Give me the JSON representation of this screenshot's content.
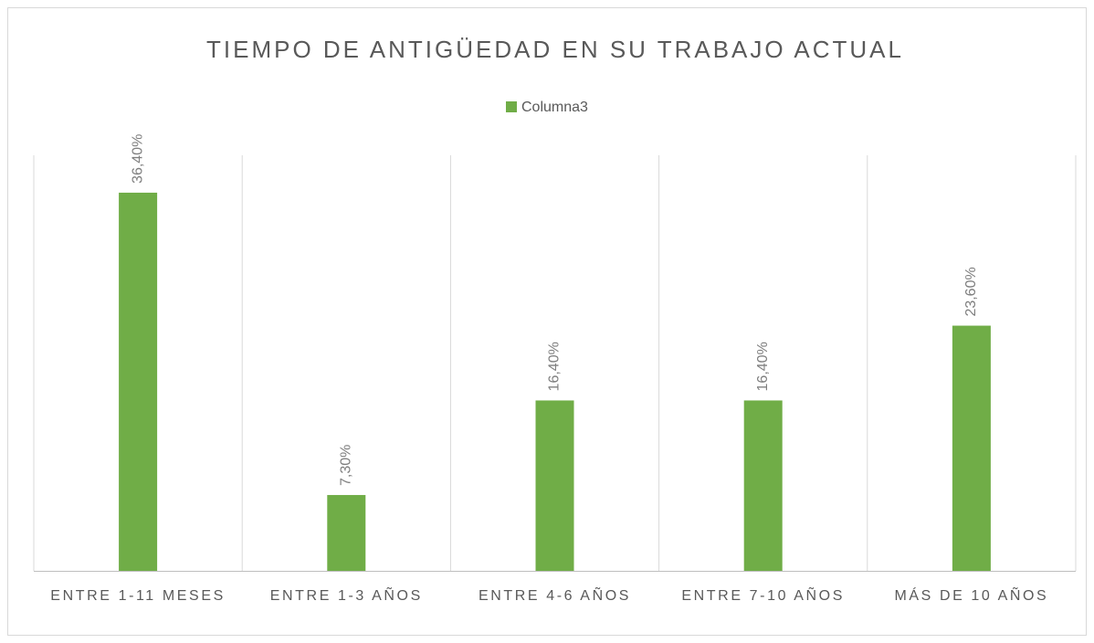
{
  "chart_data": {
    "type": "bar",
    "title": "TIEMPO DE ANTIGÜEDAD EN SU TRABAJO ACTUAL",
    "categories": [
      "ENTRE  1-11 MESES",
      "ENTRE 1-3 AÑOS",
      "ENTRE 4-6 AÑOS",
      "ENTRE 7-10 AÑOS",
      "MÁS DE 10 AÑOS"
    ],
    "series": [
      {
        "name": "Columna3",
        "color": "#70ad47",
        "values": [
          36.4,
          7.3,
          16.4,
          16.4,
          23.6
        ],
        "value_labels": [
          "36,40%",
          "7,30%",
          "16,40%",
          "16,40%",
          "23,60%"
        ]
      }
    ],
    "ylim": [
      0,
      40
    ],
    "legend": "top",
    "grid": true
  }
}
